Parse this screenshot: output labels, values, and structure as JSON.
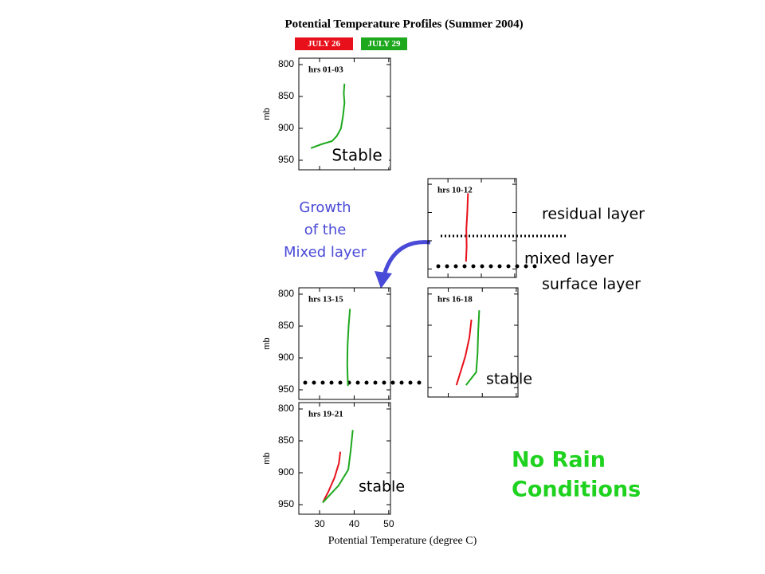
{
  "title": "Potential Temperature Profiles (Summer 2004)",
  "legend": [
    {
      "name": "JULY 26",
      "color": "#e8101a"
    },
    {
      "name": "JULY 29",
      "color": "#1ea81e"
    }
  ],
  "xlabel": "Potential Temperature (degree C)",
  "chart_data": [
    {
      "type": "line",
      "label": "hrs 01-03",
      "ylabel": "mb",
      "xlim": [
        24,
        50.5
      ],
      "ylim": [
        790,
        965
      ],
      "y_inverted": true,
      "yticks": [
        800,
        850,
        900,
        950
      ],
      "xticks": [
        30,
        40,
        50
      ],
      "show_ytick_labels": true,
      "show_xtick_labels": false,
      "series": [
        {
          "color": "#1ea81e",
          "x": [
            37.2,
            37.0,
            37.2,
            36.8,
            36.2,
            35.0,
            33.6,
            30.5,
            27.5
          ],
          "y": [
            830,
            845,
            860,
            880,
            900,
            912,
            920,
            925,
            931
          ]
        }
      ]
    },
    {
      "type": "line",
      "label": "hrs 10-12",
      "xlim": [
        24,
        50.5
      ],
      "ylim": [
        790,
        965
      ],
      "y_inverted": true,
      "yticks": [
        800,
        850,
        900,
        950
      ],
      "xticks": [
        30,
        40,
        50
      ],
      "show_ytick_labels": false,
      "show_xtick_labels": false,
      "series": [
        {
          "color": "#e8101a",
          "x": [
            36.0,
            35.8,
            35.5,
            35.6,
            35.4
          ],
          "y": [
            816,
            850,
            880,
            910,
            937
          ]
        }
      ]
    },
    {
      "type": "line",
      "label": "hrs 13-15",
      "ylabel": "mb",
      "xlim": [
        24,
        50.5
      ],
      "ylim": [
        790,
        965
      ],
      "y_inverted": true,
      "yticks": [
        800,
        850,
        900,
        950
      ],
      "xticks": [
        30,
        40,
        50
      ],
      "show_ytick_labels": true,
      "show_xtick_labels": false,
      "series": [
        {
          "color": "#1ea81e",
          "x": [
            38.8,
            38.4,
            38.1,
            38.0,
            38.2
          ],
          "y": [
            823,
            850,
            880,
            910,
            944
          ]
        }
      ]
    },
    {
      "type": "line",
      "label": "hrs 16-18",
      "xlim": [
        24,
        50.5
      ],
      "ylim": [
        790,
        965
      ],
      "y_inverted": true,
      "yticks": [
        800,
        850,
        900,
        950
      ],
      "xticks": [
        30,
        40,
        50
      ],
      "show_ytick_labels": false,
      "show_xtick_labels": false,
      "series": [
        {
          "color": "#e8101a",
          "x": [
            36.8,
            36.2,
            35.0,
            33.6,
            32.4
          ],
          "y": [
            841,
            870,
            900,
            925,
            946
          ]
        },
        {
          "color": "#1ea81e",
          "x": [
            39.1,
            38.8,
            38.6,
            38.2,
            35.2
          ],
          "y": [
            826,
            860,
            895,
            925,
            946
          ]
        }
      ]
    },
    {
      "type": "line",
      "label": "hrs 19-21",
      "ylabel": "mb",
      "xlim": [
        24,
        50.5
      ],
      "ylim": [
        790,
        965
      ],
      "y_inverted": true,
      "yticks": [
        800,
        850,
        900,
        950
      ],
      "xticks": [
        30,
        40,
        50
      ],
      "show_ytick_labels": true,
      "show_xtick_labels": true,
      "series": [
        {
          "color": "#e8101a",
          "x": [
            36.0,
            35.6,
            34.3,
            32.5,
            31.1
          ],
          "y": [
            867,
            885,
            908,
            930,
            945
          ]
        },
        {
          "color": "#1ea81e",
          "x": [
            39.6,
            39.0,
            38.3,
            35.5,
            30.9
          ],
          "y": [
            833,
            865,
            895,
            920,
            947
          ]
        }
      ]
    }
  ],
  "annotations": {
    "stable_top": "Stable",
    "growth": [
      "Growth",
      "of the",
      "Mixed layer"
    ],
    "residual": "residual layer",
    "mixed": "mixed layer",
    "surface": "surface layer",
    "stable_mid": "stable",
    "stable_bottom": "stable",
    "no_rain": [
      "No Rain",
      "Conditions"
    ]
  }
}
